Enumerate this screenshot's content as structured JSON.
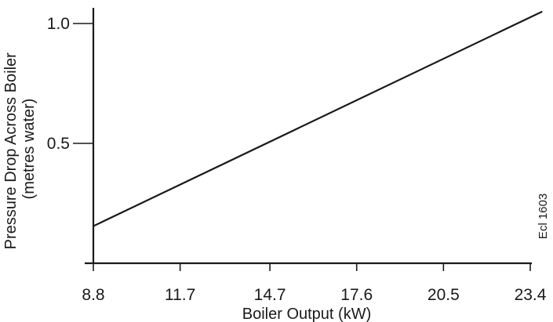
{
  "chart_data": {
    "type": "line",
    "title": "",
    "xlabel": "Boiler Output (kW)",
    "ylabel_lines": [
      "Pressure Drop Across Boiler",
      "(metres water)"
    ],
    "xticks": [
      8.8,
      11.7,
      14.7,
      17.6,
      20.5,
      23.4
    ],
    "xtick_labels": [
      "8.8",
      "11.7",
      "14.7",
      "17.6",
      "20.5",
      "23.4"
    ],
    "yticks": [
      0.5,
      1.0
    ],
    "ytick_labels": [
      "0.5",
      "1.0"
    ],
    "xlim": [
      8.8,
      23.4
    ],
    "ylim": [
      0.0,
      1.0
    ],
    "grid": false,
    "legend": "none",
    "series": [
      {
        "x": [
          8.8,
          23.8
        ],
        "y": [
          0.155,
          1.05
        ]
      }
    ],
    "annotation": "Ecl 1603",
    "line_color": "#1a1a1a"
  }
}
